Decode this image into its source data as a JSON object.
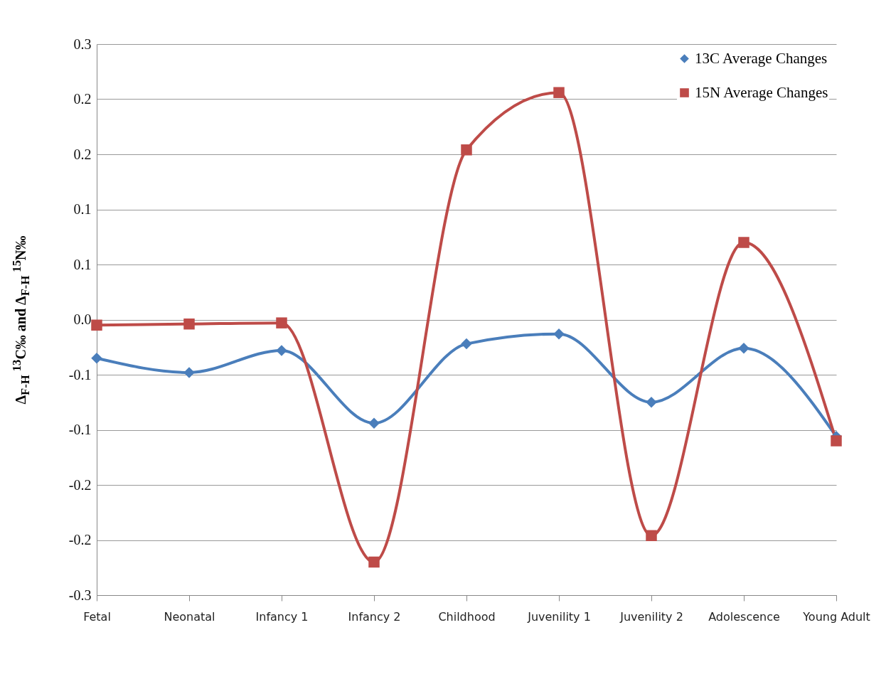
{
  "chart_data": {
    "type": "line",
    "ylabel": "Δ$_{F-H}$ $^{13}$C‰ and Δ$_{F-H}$ $^{15}$N‰",
    "categories": [
      "Fetal",
      "Neonatal",
      "Infancy 1",
      "Infancy 2",
      "Childhood",
      "Juvenility 1",
      "Juvenility 2",
      "Adolescence",
      "Young Adult"
    ],
    "series": [
      {
        "name": "13C Average Changes",
        "color": "#4a7ebb",
        "marker": "diamond",
        "values": [
          -0.035,
          -0.048,
          -0.028,
          -0.094,
          -0.022,
          -0.013,
          -0.075,
          -0.026,
          -0.106
        ]
      },
      {
        "name": "15N Average Changes",
        "color": "#be4b48",
        "marker": "square",
        "values": [
          -0.005,
          -0.004,
          -0.003,
          -0.22,
          0.154,
          0.206,
          -0.196,
          0.07,
          -0.11
        ]
      }
    ],
    "ylim": [
      -0.25,
      0.25
    ],
    "yticks": [
      {
        "value": 0.25,
        "label": "0.3"
      },
      {
        "value": 0.2,
        "label": "0.2"
      },
      {
        "value": 0.15,
        "label": "0.2"
      },
      {
        "value": 0.1,
        "label": "0.1"
      },
      {
        "value": 0.05,
        "label": "0.1"
      },
      {
        "value": 0,
        "label": "0.0"
      },
      {
        "value": -0.05,
        "label": "-0.1"
      },
      {
        "value": -0.1,
        "label": "-0.1"
      },
      {
        "value": -0.15,
        "label": "-0.2"
      },
      {
        "value": -0.2,
        "label": "-0.2"
      },
      {
        "value": -0.25,
        "label": "-0.3"
      }
    ],
    "grid": "y",
    "legend": "top right",
    "line_style": "solid"
  }
}
